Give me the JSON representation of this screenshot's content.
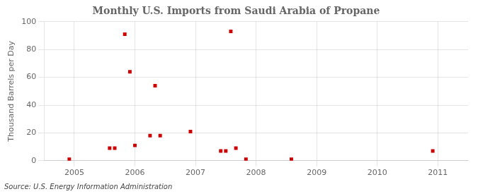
{
  "chart_data": {
    "type": "scatter",
    "title": "Monthly U.S. Imports from Saudi Arabia of Propane",
    "ylabel": "Thousand Barrels per Day",
    "source": "Source: U.S. Energy Information Administration",
    "x": [
      2004.917,
      2005.583,
      2005.667,
      2005.833,
      2005.917,
      2006.0,
      2006.25,
      2006.333,
      2006.417,
      2006.917,
      2007.417,
      2007.5,
      2007.583,
      2007.667,
      2007.833,
      2008.583,
      2010.917
    ],
    "values": [
      1,
      9,
      9,
      91,
      64,
      11,
      18,
      54,
      18,
      21,
      7,
      7,
      93,
      9,
      1,
      1,
      7
    ],
    "color": "#cc0000",
    "marker": "square",
    "xlim": [
      2004.5,
      2011.5
    ],
    "xticks": [
      2005,
      2006,
      2007,
      2008,
      2009,
      2010,
      2011
    ],
    "ylim": [
      0,
      100
    ],
    "yticks": [
      0,
      20,
      40,
      60,
      80,
      100
    ],
    "grid": true
  }
}
